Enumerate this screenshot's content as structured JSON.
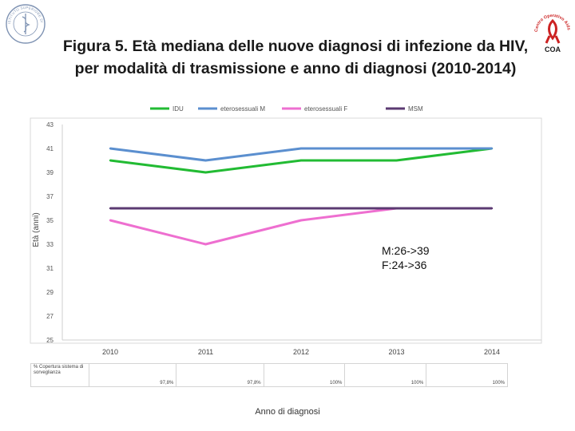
{
  "header": {
    "title_line1": "Figura 5. Età mediana delle nuove diagnosi di infezione da HIV,",
    "title_line2": "per modalità di trasmissione e anno di diagnosi (2010-2014)"
  },
  "logos": {
    "left_text": "ISTITUTO SUPERIORE DI SANITÀ",
    "right_text": "Centro Operativo Aids",
    "right_abbr": "COA"
  },
  "chart_data": {
    "type": "line",
    "title": "",
    "xlabel": "Anno di diagnosi",
    "ylabel": "Età (anni)",
    "x": [
      "2010",
      "2011",
      "2012",
      "2013",
      "2014"
    ],
    "ylim": [
      25,
      43
    ],
    "yticks": [
      25,
      27,
      29,
      31,
      33,
      35,
      37,
      39,
      41,
      43
    ],
    "grid": false,
    "legend_position": "top",
    "series": [
      {
        "name": "IDU",
        "color": "#22bb33",
        "values": [
          40,
          39,
          40,
          40,
          41
        ]
      },
      {
        "name": "eterosessuali M",
        "color": "#5b8fcf",
        "values": [
          41,
          40,
          41,
          41,
          41
        ]
      },
      {
        "name": "eterosessuali F",
        "color": "#ee6fd0",
        "values": [
          35,
          33,
          35,
          36,
          36
        ]
      },
      {
        "name": "MSM",
        "color": "#5b3a72",
        "values": [
          36,
          36,
          36,
          36,
          36
        ]
      }
    ],
    "annotations": [
      "M:26->39",
      "F:24->36"
    ]
  },
  "coverage_table": {
    "header": "% Copertura sistema di sorveglianza",
    "values": [
      "97,8%",
      "97,8%",
      "100%",
      "100%",
      "100%"
    ]
  }
}
